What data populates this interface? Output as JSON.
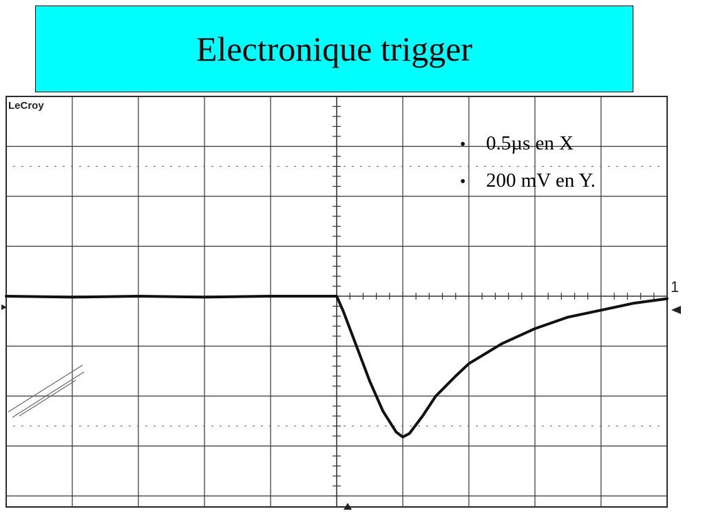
{
  "title": "Electronique trigger",
  "scope_label": "LeCroy",
  "channel_marker": "1",
  "bullets": [
    "0.5µs en X",
    "200 mV en Y."
  ],
  "colors": {
    "title_background": "#00ffff",
    "trace": "#111111",
    "grid": "#333333"
  },
  "chart_data": {
    "type": "line",
    "title": "",
    "xlabel": "",
    "ylabel": "",
    "x_units": "divisions",
    "y_units": "divisions",
    "grid": true,
    "grid_divisions": {
      "x": 10,
      "y": 8
    },
    "xlim": [
      -5,
      5
    ],
    "ylim": [
      -4,
      4
    ],
    "series": [
      {
        "x": [
          -5,
          -4,
          -3,
          -2,
          -1,
          0,
          0.1,
          0.3,
          0.5,
          0.7,
          0.9,
          1.0,
          1.1,
          1.3,
          1.5,
          1.8,
          2.0,
          2.5,
          3.0,
          3.5,
          4.0,
          4.5,
          5.0
        ],
        "y": [
          0,
          -0.02,
          0,
          -0.02,
          0,
          0,
          -0.3,
          -1.0,
          -1.7,
          -2.3,
          -2.72,
          -2.82,
          -2.75,
          -2.4,
          -2.0,
          -1.6,
          -1.35,
          -0.95,
          -0.65,
          -0.42,
          -0.28,
          -0.14,
          -0.05
        ]
      }
    ]
  }
}
